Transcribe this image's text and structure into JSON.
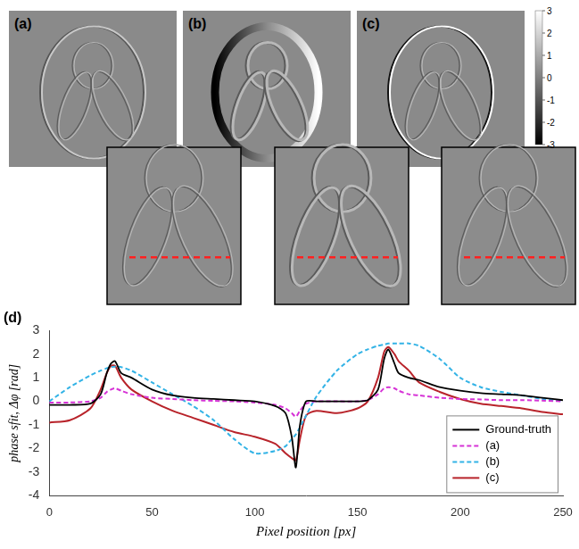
{
  "image_panels": {
    "labels": [
      "(a)",
      "(b)",
      "(c)"
    ],
    "colorbar": {
      "range": [
        -3,
        3
      ],
      "ticks": [
        3,
        2,
        1,
        0,
        -1,
        -2,
        -3
      ]
    }
  },
  "chart_data": {
    "type": "line",
    "title": "(d)",
    "x_label": "Pixel position [px]",
    "y_label": "phase sfit, Δφ [rad]",
    "x": [
      0,
      10,
      20,
      25,
      28,
      30,
      32,
      35,
      40,
      50,
      60,
      70,
      80,
      90,
      100,
      110,
      115,
      118,
      120,
      122,
      125,
      130,
      140,
      150,
      155,
      160,
      163,
      165,
      168,
      170,
      175,
      180,
      190,
      200,
      210,
      220,
      230,
      240,
      250
    ],
    "series": [
      {
        "name": "Ground-truth",
        "color": "#000000",
        "line_style": "solid",
        "values": [
          -0.15,
          -0.15,
          -0.1,
          0.3,
          1.2,
          1.6,
          1.7,
          1.2,
          1.0,
          0.5,
          0.25,
          0.15,
          0.1,
          0.05,
          0,
          -0.2,
          -0.5,
          -1.5,
          -2.8,
          -1.0,
          0,
          0,
          0,
          0,
          0.05,
          0.5,
          1.8,
          2.2,
          1.6,
          1.2,
          1.0,
          0.9,
          0.6,
          0.45,
          0.35,
          0.3,
          0.25,
          0.15,
          0.05
        ]
      },
      {
        "name": "(a)",
        "color": "#d633d6",
        "line_style": "dashed",
        "values": [
          -0.05,
          -0.05,
          0,
          0.15,
          0.4,
          0.5,
          0.55,
          0.45,
          0.3,
          0.15,
          0.1,
          0.05,
          0.02,
          0,
          -0.05,
          -0.15,
          -0.3,
          -0.5,
          -0.65,
          -0.4,
          -0.1,
          0,
          0,
          0,
          0.05,
          0.3,
          0.55,
          0.6,
          0.55,
          0.45,
          0.3,
          0.25,
          0.15,
          0.1,
          0.08,
          0.05,
          0.05,
          0.03,
          0
        ]
      },
      {
        "name": "(b)",
        "color": "#33b3e6",
        "line_style": "dashed",
        "values": [
          0,
          0.6,
          1.1,
          1.3,
          1.4,
          1.45,
          1.47,
          1.45,
          1.3,
          0.8,
          0.3,
          -0.2,
          -0.8,
          -1.6,
          -2.2,
          -2.1,
          -1.9,
          -1.6,
          -1.4,
          -1.1,
          -0.6,
          0.2,
          1.3,
          2.0,
          2.2,
          2.35,
          2.4,
          2.45,
          2.45,
          2.45,
          2.45,
          2.35,
          1.8,
          1.0,
          0.6,
          0.4,
          0.25,
          0.1,
          0
        ]
      },
      {
        "name": "(c)",
        "color": "#b8232a",
        "line_style": "solid",
        "values": [
          -0.9,
          -0.8,
          -0.3,
          0.5,
          1.2,
          1.5,
          1.5,
          1.0,
          0.5,
          0,
          -0.4,
          -0.7,
          -1.0,
          -1.3,
          -1.5,
          -1.8,
          -2.2,
          -2.4,
          -2.5,
          -1.6,
          -0.6,
          -0.4,
          -0.5,
          -0.3,
          0,
          1.0,
          2.1,
          2.3,
          2.0,
          1.7,
          1.3,
          0.8,
          0.4,
          0.1,
          -0.1,
          -0.2,
          -0.3,
          -0.45,
          -0.55
        ]
      }
    ],
    "xlim": [
      0,
      250
    ],
    "xticks": [
      0,
      50,
      100,
      150,
      200,
      250
    ],
    "ylim": [
      -4,
      3
    ],
    "yticks": [
      -4,
      -3,
      -2,
      -1,
      0,
      1,
      2,
      3
    ],
    "grid": false,
    "legend": "lower right"
  }
}
